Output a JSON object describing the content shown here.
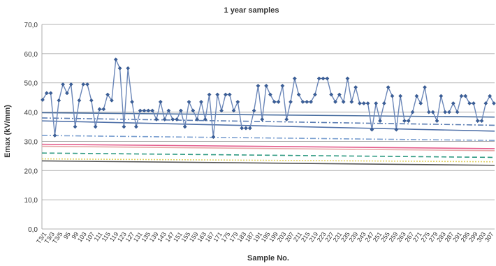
{
  "chart_data": {
    "type": "line",
    "title": "1 year samples",
    "xlabel": "Sample No.",
    "ylabel": "Emax (kV/mm)",
    "ylim": [
      0,
      70
    ],
    "yticks": [
      "0,0",
      "10,0",
      "20,0",
      "30,0",
      "40,0",
      "50,0",
      "60,0",
      "70,0"
    ],
    "grid": true,
    "legend": "none",
    "x_tick_labels": [
      "T3/1",
      "T3/3",
      "T3/5",
      "95",
      "99",
      "103",
      "107",
      "111",
      "115",
      "119",
      "123",
      "127",
      "131",
      "135",
      "139",
      "143",
      "147",
      "151",
      "155",
      "159",
      "163",
      "167",
      "171",
      "175",
      "179",
      "183",
      "187",
      "191",
      "195",
      "199",
      "203",
      "207",
      "211",
      "215",
      "219",
      "223",
      "227",
      "231",
      "235",
      "239",
      "243",
      "247",
      "251",
      "255",
      "259",
      "263",
      "267",
      "271",
      "275",
      "279",
      "283",
      "287",
      "291",
      "295",
      "299",
      "303",
      "307"
    ],
    "series": [
      {
        "type": "line",
        "color": "#6a86b8",
        "values": [
          44.2,
          46.5,
          46.5,
          32.0,
          44.0,
          49.5,
          46.5,
          49.5,
          35.0,
          44.0,
          49.5,
          49.5,
          44.0,
          35.0,
          41.0,
          41.0,
          46.0,
          44.0,
          58.0,
          55.0,
          35.0,
          55.0,
          43.5,
          35.0,
          40.5,
          40.5,
          40.5,
          40.5,
          37.5,
          43.5,
          37.5,
          40.5,
          37.5,
          37.5,
          40.5,
          35.0,
          43.5,
          40.5,
          37.5,
          43.5,
          37.5,
          46.0,
          31.5,
          46.0,
          40.5,
          46.0,
          46.0,
          40.5,
          43.5,
          34.5,
          34.5,
          34.5,
          40.5,
          49.0,
          37.5,
          49.0,
          46.0,
          43.5,
          43.5,
          49.0,
          37.5,
          43.5,
          51.5,
          46.0,
          43.5,
          43.5,
          43.5,
          46.0,
          51.5,
          51.5,
          51.5,
          46.0,
          43.5,
          46.0,
          43.5,
          51.5,
          43.5,
          48.5,
          43.0,
          43.0,
          43.0,
          34.0,
          43.0,
          37.0,
          43.0,
          48.5,
          45.5,
          34.0,
          45.5,
          37.0,
          37.0,
          40.0,
          45.5,
          43.0,
          48.5,
          40.0,
          40.0,
          37.0,
          45.5,
          40.0,
          40.0,
          43.0,
          40.0,
          45.5,
          45.5,
          43.0,
          43.0,
          37.0,
          37.0,
          43.0,
          45.5,
          43.0
        ]
      },
      {
        "type": "line",
        "color": "#4a6fa0",
        "style": "solid",
        "values": [
          39.8,
          38.3
        ]
      },
      {
        "type": "line",
        "color": "#4f70a8",
        "style": "solid",
        "values": [
          37.0,
          33.5
        ]
      },
      {
        "type": "line",
        "color": "#5b7db3",
        "style": "dashdot",
        "values": [
          38.0,
          35.5
        ]
      },
      {
        "type": "line",
        "color": "#7a9fd0",
        "style": "dashdot",
        "values": [
          32.0,
          30.3
        ]
      },
      {
        "type": "line",
        "color": "#e45c8c",
        "style": "solid",
        "values": [
          29.0,
          27.5
        ]
      },
      {
        "type": "line",
        "color": "#e7a8a8",
        "style": "solid",
        "values": [
          28.3,
          26.8
        ]
      },
      {
        "type": "line",
        "color": "#2f9a82",
        "style": "dashed",
        "values": [
          26.0,
          24.5
        ]
      },
      {
        "type": "line",
        "color": "#e0d060",
        "style": "dotted",
        "values": [
          24.0,
          23.0
        ]
      },
      {
        "type": "line",
        "color": "#555555",
        "style": "solid",
        "values": [
          23.3,
          21.8
        ]
      }
    ]
  }
}
